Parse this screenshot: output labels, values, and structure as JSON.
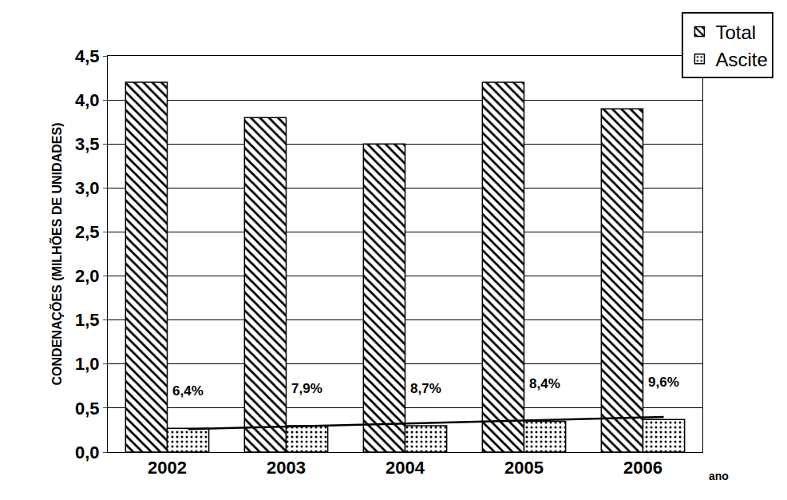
{
  "chart_data": {
    "type": "bar",
    "y_label": "CONDENAÇÕES (MILHÕES DE UNIDADES)",
    "x_label": "ano",
    "categories": [
      "2002",
      "2003",
      "2004",
      "2005",
      "2006"
    ],
    "series": [
      {
        "name": "Total",
        "color": "#ffffff",
        "marker": "hatch",
        "values": [
          4.2,
          3.8,
          3.5,
          4.2,
          3.9
        ]
      },
      {
        "name": "Ascite",
        "color": "#ffffff",
        "marker": "dots",
        "values": [
          0.27,
          0.3,
          0.3,
          0.35,
          0.37
        ],
        "annotations": [
          "6,4%",
          "7,9%",
          "8,7%",
          "8,4%",
          "9,6%"
        ]
      }
    ],
    "trend_line": {
      "series": "Ascite",
      "values": [
        0.26,
        0.4
      ]
    },
    "ylim": [
      0,
      4.5
    ],
    "yticks": [
      {
        "value": 0,
        "label": "0,0"
      },
      {
        "value": 0.5,
        "label": "0,5"
      },
      {
        "value": 1,
        "label": "1,0"
      },
      {
        "value": 1.5,
        "label": "1,5"
      },
      {
        "value": 2,
        "label": "2,0"
      },
      {
        "value": 2.5,
        "label": "2,5"
      },
      {
        "value": 3,
        "label": "3,0"
      },
      {
        "value": 3.5,
        "label": "3,5"
      },
      {
        "value": 4,
        "label": "4,0"
      },
      {
        "value": 4.5,
        "label": "4,5"
      }
    ],
    "grid": true,
    "legend": "upper right"
  }
}
